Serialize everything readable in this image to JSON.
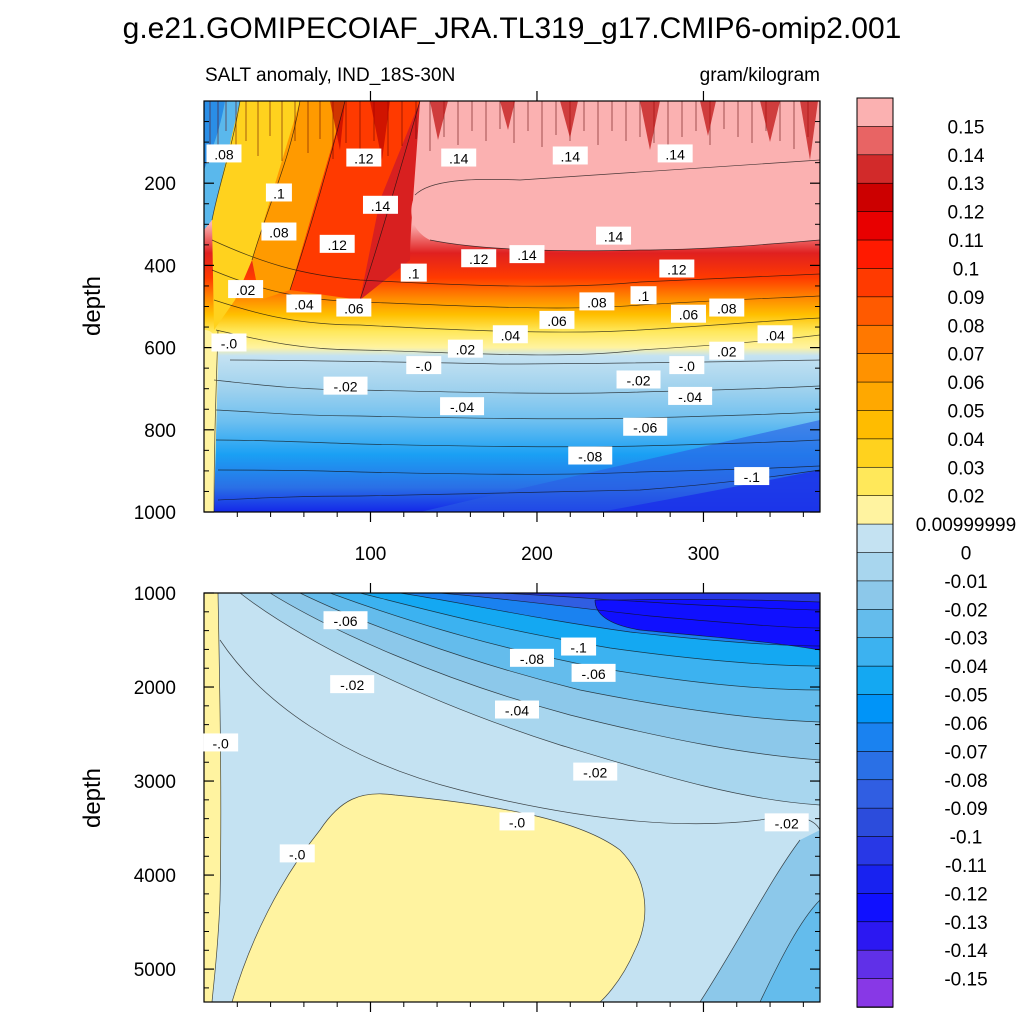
{
  "chart_data": [
    {
      "type": "contour",
      "panel": "upper",
      "title": "g.e21.GOMIPECOIAF_JRA.TL319_g17.CMIP6-omip2.001",
      "subtitle_left": "SALT anomaly, IND_18S-30N",
      "subtitle_right": "gram/kilogram",
      "ylabel": "depth",
      "xlabel": "",
      "xlim": [
        0,
        370
      ],
      "ylim": [
        1000,
        0
      ],
      "x_ticks": [
        "100",
        "200",
        "300"
      ],
      "y_ticks": [
        "200",
        "400",
        "600",
        "800",
        "1000"
      ],
      "contour_labels": [
        {
          "text": ".08",
          "x": 12,
          "y": 130
        },
        {
          "text": ".1",
          "x": 45,
          "y": 225
        },
        {
          "text": ".08",
          "x": 45,
          "y": 320
        },
        {
          "text": ".12",
          "x": 96,
          "y": 140
        },
        {
          "text": ".14",
          "x": 153,
          "y": 140
        },
        {
          "text": ".14",
          "x": 220,
          "y": 135
        },
        {
          "text": ".14",
          "x": 283,
          "y": 130
        },
        {
          "text": ".14",
          "x": 106,
          "y": 255
        },
        {
          "text": ".12",
          "x": 80,
          "y": 350
        },
        {
          "text": ".1",
          "x": 126,
          "y": 420
        },
        {
          "text": ".12",
          "x": 165,
          "y": 385
        },
        {
          "text": ".14",
          "x": 194,
          "y": 375
        },
        {
          "text": ".14",
          "x": 246,
          "y": 330
        },
        {
          "text": ".12",
          "x": 284,
          "y": 410
        },
        {
          "text": ".02",
          "x": 25,
          "y": 460
        },
        {
          "text": ".04",
          "x": 60,
          "y": 495
        },
        {
          "text": ".06",
          "x": 90,
          "y": 505
        },
        {
          "text": ".1",
          "x": 264,
          "y": 475
        },
        {
          "text": ".08",
          "x": 236,
          "y": 490
        },
        {
          "text": ".06",
          "x": 291,
          "y": 520
        },
        {
          "text": ".08",
          "x": 314,
          "y": 505
        },
        {
          "text": ".06",
          "x": 212,
          "y": 535
        },
        {
          "text": ".04",
          "x": 184,
          "y": 570
        },
        {
          "text": ".04",
          "x": 343,
          "y": 570
        },
        {
          "text": ".02",
          "x": 157,
          "y": 605
        },
        {
          "text": ".02",
          "x": 314,
          "y": 610
        },
        {
          "text": "-.0",
          "x": 15,
          "y": 590
        },
        {
          "text": "-.0",
          "x": 132,
          "y": 645
        },
        {
          "text": "-.0",
          "x": 290,
          "y": 645
        },
        {
          "text": "-.02",
          "x": 85,
          "y": 695
        },
        {
          "text": "-.02",
          "x": 261,
          "y": 680
        },
        {
          "text": "-.04",
          "x": 155,
          "y": 745
        },
        {
          "text": "-.04",
          "x": 292,
          "y": 720
        },
        {
          "text": "-.06",
          "x": 265,
          "y": 795
        },
        {
          "text": "-.08",
          "x": 232,
          "y": 865
        },
        {
          "text": "-.1",
          "x": 329,
          "y": 915
        }
      ]
    },
    {
      "type": "contour",
      "panel": "lower",
      "ylabel": "depth",
      "xlim": [
        0,
        370
      ],
      "ylim": [
        5350,
        1000
      ],
      "y_ticks": [
        "1000",
        "2000",
        "3000",
        "4000",
        "5000"
      ],
      "contour_labels": [
        {
          "text": "-.06",
          "x": 85,
          "y": 1300
        },
        {
          "text": "-.1",
          "x": 225,
          "y": 1580
        },
        {
          "text": "-.08",
          "x": 197,
          "y": 1700
        },
        {
          "text": "-.06",
          "x": 234,
          "y": 1860
        },
        {
          "text": "-.02",
          "x": 89,
          "y": 1980
        },
        {
          "text": "-.04",
          "x": 188,
          "y": 2250
        },
        {
          "text": "-.0",
          "x": 10,
          "y": 2600
        },
        {
          "text": "-.02",
          "x": 235,
          "y": 2910
        },
        {
          "text": "-.0",
          "x": 188,
          "y": 3440
        },
        {
          "text": "-.02",
          "x": 350,
          "y": 3450
        },
        {
          "text": "-.0",
          "x": 56,
          "y": 3780
        }
      ]
    }
  ],
  "colorbar": {
    "labels": [
      "0.15",
      "0.14",
      "0.13",
      "0.12",
      "0.11",
      "0.1",
      "0.09",
      "0.08",
      "0.07",
      "0.06",
      "0.05",
      "0.04",
      "0.03",
      "0.02",
      "0.00999999",
      "0",
      "-0.01",
      "-0.02",
      "-0.03",
      "-0.04",
      "-0.05",
      "-0.06",
      "-0.07",
      "-0.08",
      "-0.09",
      "-0.1",
      "-0.11",
      "-0.12",
      "-0.13",
      "-0.14",
      "-0.15"
    ],
    "colors": [
      "#fbb1b1",
      "#e86464",
      "#d22a2a",
      "#cc0000",
      "#e80000",
      "#ff1a00",
      "#ff3a00",
      "#ff5a00",
      "#ff7800",
      "#ff9200",
      "#ffa800",
      "#ffbc00",
      "#ffd21e",
      "#ffe85a",
      "#fff3a0",
      "#c4e2f2",
      "#a8d6ee",
      "#8cc8ea",
      "#64bcec",
      "#3cb2f0",
      "#14a8f2",
      "#0094f8",
      "#1a82f0",
      "#2a70e6",
      "#305ee2",
      "#2c4cdc",
      "#2838e6",
      "#1822f0",
      "#1010ff",
      "#2c18f2",
      "#6030e8",
      "#8838e6"
    ]
  },
  "field_colors": {
    "pos_max": "#fbb1b1",
    "neg_max": "#0a10f0",
    "lower_deep": "#1c2ce0"
  }
}
